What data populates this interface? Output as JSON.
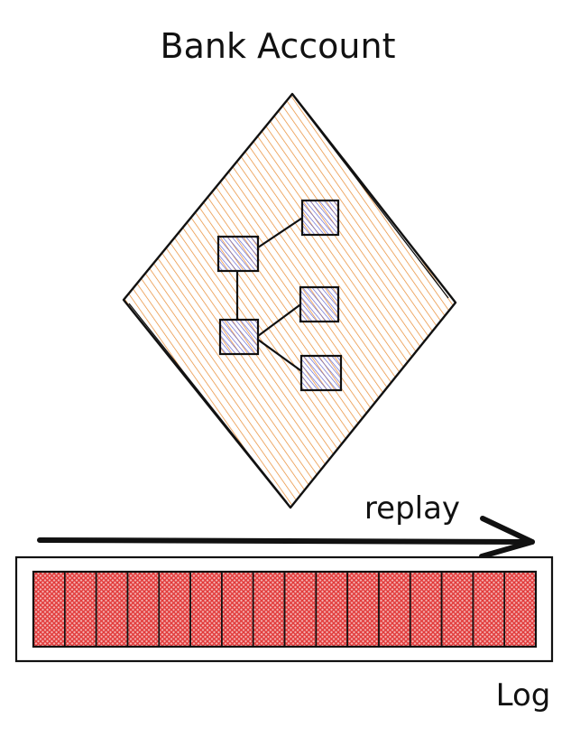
{
  "diagram": {
    "title": "Bank Account",
    "arrow_label": "replay",
    "log_label": "Log",
    "log_segment_count": 16,
    "node_count": 5,
    "colors": {
      "ink": "#111111",
      "diamond_fill": "#e8892e",
      "node_fill": "#5b5fd0",
      "log_fill": "#e23b3b",
      "background": "#ffffff"
    }
  }
}
